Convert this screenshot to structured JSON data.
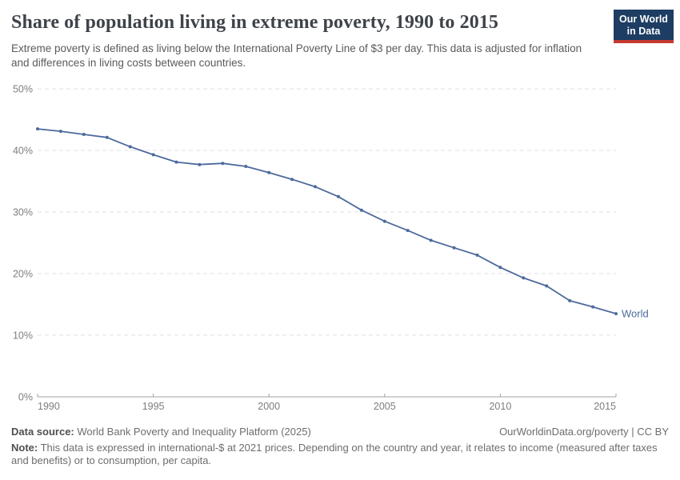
{
  "header": {
    "title": "Share of population living in extreme poverty, 1990 to 2015",
    "subtitle": "Extreme poverty is defined as living below the International Poverty Line of $3 per day. This data is adjusted for inflation and differences in living costs between countries.",
    "logo": {
      "line1": "Our World",
      "line2": "in Data"
    }
  },
  "chart_data": {
    "type": "line",
    "title": "Share of population living in extreme poverty, 1990 to 2015",
    "subtitle": "Extreme poverty is defined as living below the International Poverty Line of $3 per day. This data is adjusted for inflation and differences in living costs between countries.",
    "xlabel": "",
    "ylabel": "",
    "xlim": [
      1990,
      2015
    ],
    "ylim": [
      0,
      50
    ],
    "x_ticks": [
      1990,
      1995,
      2000,
      2005,
      2010,
      2015
    ],
    "y_ticks": [
      0,
      10,
      20,
      30,
      40,
      50
    ],
    "y_suffix": "%",
    "grid": "horizontal-dashed",
    "legend_position": "end-of-line-label",
    "end_label": "World",
    "marker": "circle",
    "series": [
      {
        "name": "World",
        "color": "#4c6a9c",
        "x": [
          1990,
          1991,
          1992,
          1993,
          1994,
          1995,
          1996,
          1997,
          1998,
          1999,
          2000,
          2001,
          2002,
          2003,
          2004,
          2005,
          2006,
          2007,
          2008,
          2009,
          2010,
          2011,
          2012,
          2013,
          2014,
          2015
        ],
        "values": [
          43.5,
          43.1,
          42.6,
          42.1,
          40.6,
          39.3,
          38.1,
          37.7,
          37.9,
          37.4,
          36.4,
          35.3,
          34.1,
          32.5,
          30.3,
          28.5,
          27.0,
          25.4,
          24.2,
          23.0,
          21.0,
          19.3,
          18.0,
          15.6,
          14.6,
          13.5
        ]
      }
    ]
  },
  "footer": {
    "source_label": "Data source:",
    "source_text": " World Bank Poverty and Inequality Platform (2025)",
    "link_text": "OurWorldinData.org/poverty | CC BY",
    "note_label": "Note:",
    "note_text": " This data is expressed in international-$ at 2021 prices. Depending on the country and year, it relates to income (measured after taxes and benefits) or to consumption, per capita."
  },
  "colors": {
    "series_blue": "#4c6a9c",
    "grid": "#e2e2e2",
    "axis": "#a0a0a0",
    "tick_label": "#7e7e7e",
    "logo_navy": "#1d3d63",
    "logo_red": "#c53a2f"
  }
}
